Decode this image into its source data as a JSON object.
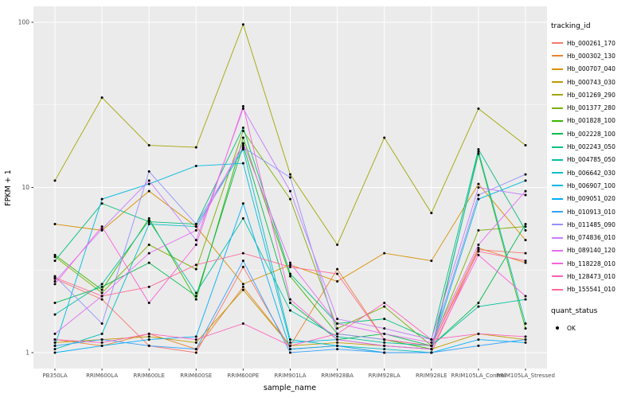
{
  "chart_data": {
    "type": "line",
    "title": "",
    "xlabel": "sample_name",
    "ylabel": "FPKM + 1",
    "y_scale": "log10",
    "y_breaks": [
      1,
      10,
      100
    ],
    "y_minor_breaks": [
      3.1623,
      31.623
    ],
    "ylim": [
      0.8,
      125
    ],
    "grid": true,
    "panel_bg": "#EBEBEB",
    "grid_color": "#FFFFFF",
    "point_color": "#000000",
    "legend_position": "right",
    "categories": [
      "PB350LA",
      "RRIM600LA",
      "RRIM600LE",
      "RRIM600SE",
      "RRIM600PE",
      "RRIM901LA",
      "RRIM928BA",
      "RRIM928LA",
      "RRIM928LE",
      "RRIM105LA_Control",
      "RRIM105LA_Stressed"
    ],
    "series": [
      {
        "name": "Hb_000261_170",
        "color": "#F8766D",
        "values": [
          2.8,
          2.1,
          1.1,
          1.0,
          3.3,
          1.05,
          1.1,
          1.0,
          1.0,
          4.2,
          4.0
        ]
      },
      {
        "name": "Hb_000302_130",
        "color": "#EA8331",
        "values": [
          1.2,
          1.1,
          1.3,
          1.05,
          2.5,
          1.1,
          3.2,
          1.2,
          1.1,
          4.3,
          3.5
        ]
      },
      {
        "name": "Hb_000707_040",
        "color": "#D89000",
        "values": [
          6.0,
          5.5,
          9.5,
          5.8,
          2.6,
          3.4,
          2.7,
          4.0,
          3.6,
          10.5,
          4.8
        ]
      },
      {
        "name": "Hb_000743_030",
        "color": "#C09B00",
        "values": [
          1.15,
          1.2,
          1.25,
          1.15,
          2.4,
          1.1,
          1.15,
          1.1,
          1.05,
          1.3,
          1.2
        ]
      },
      {
        "name": "Hb_001269_290",
        "color": "#A3A500",
        "values": [
          11,
          35,
          18,
          17.5,
          97,
          12,
          4.5,
          20,
          7,
          30,
          18
        ]
      },
      {
        "name": "Hb_001377_280",
        "color": "#7CAE00",
        "values": [
          3.8,
          2.3,
          4.5,
          3.2,
          22,
          8.5,
          1.4,
          1.9,
          1.1,
          5.5,
          5.8
        ]
      },
      {
        "name": "Hb_001828_100",
        "color": "#39B600",
        "values": [
          3.9,
          2.4,
          6.5,
          2.1,
          20,
          2.9,
          1.3,
          1.2,
          1.05,
          16,
          1.4
        ]
      },
      {
        "name": "Hb_002228_100",
        "color": "#00BB4E",
        "values": [
          2.0,
          2.5,
          3.5,
          2.2,
          18,
          2.0,
          1.2,
          1.3,
          1.1,
          2.0,
          6.0
        ]
      },
      {
        "name": "Hb_002243_050",
        "color": "#00BF7D",
        "values": [
          3.6,
          8.0,
          6.2,
          6.0,
          23,
          3.0,
          1.5,
          1.6,
          1.2,
          17,
          5.5
        ]
      },
      {
        "name": "Hb_004785_050",
        "color": "#00C1A3",
        "values": [
          1.7,
          2.6,
          6.3,
          2.3,
          6.5,
          1.8,
          1.25,
          1.15,
          1.1,
          1.9,
          2.1
        ]
      },
      {
        "name": "Hb_006642_030",
        "color": "#00BFC4",
        "values": [
          1.05,
          1.3,
          6.0,
          5.8,
          17,
          1.2,
          1.1,
          1.05,
          1.0,
          16.5,
          1.5
        ]
      },
      {
        "name": "Hb_006907_100",
        "color": "#00BAE0",
        "values": [
          1.1,
          8.5,
          10.5,
          13.5,
          14,
          1.15,
          1.2,
          1.1,
          1.05,
          8.5,
          11
        ]
      },
      {
        "name": "Hb_009051_020",
        "color": "#00B0F6",
        "values": [
          1.0,
          1.1,
          1.2,
          1.25,
          8.0,
          1.05,
          1.1,
          1.0,
          1.0,
          1.2,
          1.15
        ]
      },
      {
        "name": "Hb_010913_010",
        "color": "#35A2FF",
        "values": [
          1.1,
          1.2,
          1.1,
          1.05,
          3.6,
          1.0,
          1.05,
          1.0,
          1.0,
          1.1,
          1.2
        ]
      },
      {
        "name": "Hb_011485_090",
        "color": "#9590FF",
        "values": [
          2.9,
          1.5,
          12.5,
          6.0,
          17.5,
          11.5,
          1.3,
          1.2,
          1.1,
          9.0,
          12
        ]
      },
      {
        "name": "Hb_074836_010",
        "color": "#C77CFF",
        "values": [
          2.7,
          5.6,
          11,
          4.8,
          30,
          9.5,
          1.6,
          1.4,
          1.2,
          10,
          9.0
        ]
      },
      {
        "name": "Hb_089140_120",
        "color": "#E76BF3",
        "values": [
          1.3,
          2.2,
          4.0,
          5.5,
          18.5,
          3.5,
          1.5,
          1.3,
          1.15,
          4.5,
          9.5
        ]
      },
      {
        "name": "Hb_118228_010",
        "color": "#FA62DB",
        "values": [
          2.6,
          5.8,
          2.0,
          4.5,
          31,
          2.1,
          1.2,
          1.1,
          1.05,
          3.9,
          2.2
        ]
      },
      {
        "name": "Hb_128473_010",
        "color": "#FF62BC",
        "values": [
          1.2,
          1.15,
          1.3,
          1.2,
          1.5,
          1.1,
          1.3,
          2.0,
          1.2,
          1.3,
          1.25
        ]
      },
      {
        "name": "Hb_155541_010",
        "color": "#FF6A98",
        "values": [
          2.85,
          2.2,
          2.5,
          3.4,
          4.0,
          3.3,
          3.0,
          1.2,
          1.1,
          4.1,
          3.6
        ]
      }
    ],
    "legend": {
      "color_title": "tracking_id",
      "shape_title": "quant_status",
      "shape_items": [
        {
          "label": "OK",
          "symbol": "point",
          "color": "#000000"
        }
      ]
    }
  }
}
